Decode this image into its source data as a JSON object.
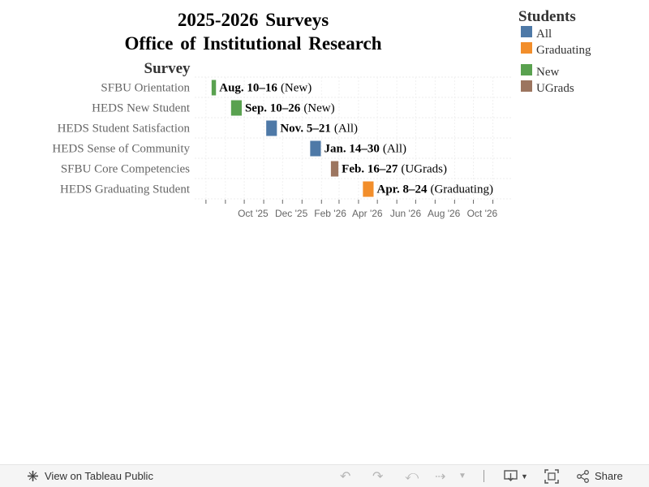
{
  "chart_data": {
    "type": "gantt",
    "title": [
      "2025-2026 Surveys",
      "Office of Institutional Research"
    ],
    "y_axis_header": "Survey",
    "x_tick_labels": [
      "Oct '25",
      "Dec '25",
      "Feb '26",
      "Apr '26",
      "Jun '26",
      "Aug '26",
      "Oct '26"
    ],
    "x_range": [
      "2025-07-27",
      "2026-11-30"
    ],
    "legend": {
      "title": "Students",
      "items": [
        {
          "label": "All",
          "color": "#4e79a7"
        },
        {
          "label": "Graduating",
          "color": "#f28e2b"
        },
        {
          "label": "New",
          "color": "#59a14f"
        },
        {
          "label": "UGrads",
          "color": "#9c755f"
        }
      ]
    },
    "rows": [
      {
        "survey": "SFBU Orientation",
        "start": "2025-08-10",
        "end": "2025-08-16",
        "group": "New",
        "date_label": "Aug. 10–16",
        "group_label": "(New)"
      },
      {
        "survey": "HEDS New Student",
        "start": "2025-09-10",
        "end": "2025-09-26",
        "group": "New",
        "date_label": "Sep. 10–26",
        "group_label": "(New)"
      },
      {
        "survey": "HEDS Student Satisfaction",
        "start": "2025-11-05",
        "end": "2025-11-21",
        "group": "All",
        "date_label": "Nov. 5–21",
        "group_label": "(All)"
      },
      {
        "survey": "HEDS Sense of Community",
        "start": "2026-01-14",
        "end": "2026-01-30",
        "group": "All",
        "date_label": "Jan. 14–30",
        "group_label": "(All)"
      },
      {
        "survey": "SFBU Core Competencies",
        "start": "2026-02-16",
        "end": "2026-02-27",
        "group": "UGrads",
        "date_label": "Feb. 16–27",
        "group_label": "(UGrads)"
      },
      {
        "survey": "HEDS Graduating Student",
        "start": "2026-04-08",
        "end": "2026-04-24",
        "group": "Graduating",
        "date_label": "Apr. 8–24",
        "group_label": "(Graduating)"
      }
    ]
  },
  "toolbar": {
    "view_label": "View on Tableau Public",
    "share_label": "Share"
  }
}
